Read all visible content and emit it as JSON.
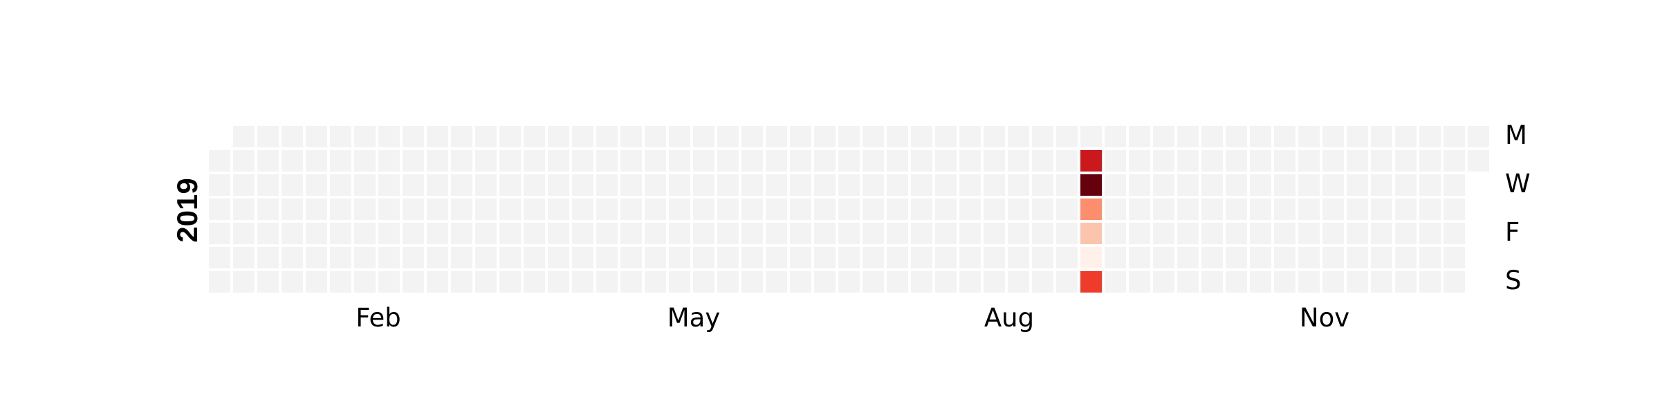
{
  "chart_data": {
    "type": "heatmap",
    "title": "",
    "year": "2019",
    "day_labels": [
      "M",
      "W",
      "F",
      "S"
    ],
    "month_labels": [
      "Feb",
      "May",
      "Aug",
      "Nov"
    ],
    "start_weekday": 1,
    "days_in_year": 365,
    "empty_color": "#f3f3f3",
    "colormap": "Reds",
    "active_days": [
      {
        "date": "2019-08-13",
        "week": 36,
        "weekday": 1,
        "value": 0.75,
        "color": "#cb181d"
      },
      {
        "date": "2019-08-14",
        "week": 36,
        "weekday": 2,
        "value": 1.0,
        "color": "#67000d"
      },
      {
        "date": "2019-08-15",
        "week": 36,
        "weekday": 3,
        "value": 0.45,
        "color": "#fc8e6e"
      },
      {
        "date": "2019-08-16",
        "week": 36,
        "weekday": 4,
        "value": 0.25,
        "color": "#fcc4ad"
      },
      {
        "date": "2019-08-17",
        "week": 36,
        "weekday": 5,
        "value": 0.05,
        "color": "#fff1ea"
      },
      {
        "date": "2019-08-18",
        "week": 36,
        "weekday": 6,
        "value": 0.6,
        "color": "#ef3b2c"
      }
    ]
  }
}
